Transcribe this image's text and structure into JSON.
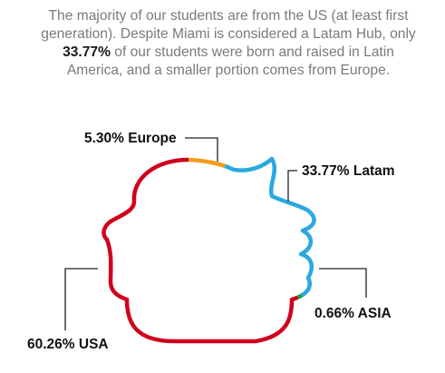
{
  "intro": {
    "part1": "The majority of our students are from the US (at least first generation). Despite Miami is considered a Latam Hub, only ",
    "highlight": "33.77%",
    "part2": " of our students were born and raised in Latin America, and a smaller portion comes from Europe."
  },
  "colors": {
    "usa": "#d0021b",
    "europe": "#f39c1f",
    "latam": "#29a9df",
    "asia": "#1fa045",
    "leader": "#222222"
  },
  "chart_data": {
    "type": "pie",
    "style": "outline-silhouette-of-a-head",
    "slices": [
      {
        "label": "USA",
        "value": 60.26,
        "display": "60.26% USA",
        "color": "#d0021b"
      },
      {
        "label": "Europe",
        "value": 5.3,
        "display": "5.30% Europe",
        "color": "#f39c1f"
      },
      {
        "label": "Latam",
        "value": 33.77,
        "display": "33.77% Latam",
        "color": "#29a9df"
      },
      {
        "label": "ASIA",
        "value": 0.66,
        "display": "0.66% ASIA",
        "color": "#1fa045"
      }
    ]
  }
}
